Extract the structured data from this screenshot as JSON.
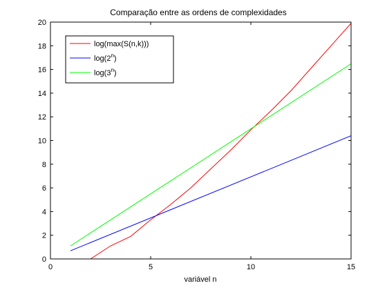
{
  "chart_data": {
    "type": "line",
    "title": "Comparação entre as ordens de complexidades",
    "xlabel": "variável n",
    "ylabel": "",
    "xlim": [
      0,
      15
    ],
    "ylim": [
      0,
      20
    ],
    "xticks": [
      0,
      5,
      10,
      15
    ],
    "yticks": [
      0,
      2,
      4,
      6,
      8,
      10,
      12,
      14,
      16,
      18,
      20
    ],
    "grid": false,
    "legend_position": "top-left",
    "series": [
      {
        "name": "log(max(S(n,k)))",
        "legend_base": "log(max(S(n,k)))",
        "legend_sup": "",
        "legend_tail": "",
        "color": "#ff0000",
        "x": [
          1,
          2,
          3,
          4,
          5,
          6,
          7,
          8,
          9,
          10,
          11,
          12,
          13,
          14,
          15
        ],
        "y": [
          -0.7,
          0.0,
          1.1,
          1.9,
          3.3,
          4.6,
          6.0,
          7.6,
          9.2,
          10.9,
          12.5,
          14.2,
          16.1,
          18.0,
          19.9
        ]
      },
      {
        "name": "log(2n)",
        "legend_base": "log(2",
        "legend_sup": "n",
        "legend_tail": ")",
        "color": "#0000ff",
        "x": [
          1,
          15
        ],
        "y": [
          0.69,
          10.4
        ]
      },
      {
        "name": "log(3n)",
        "legend_base": "log(3",
        "legend_sup": "n",
        "legend_tail": ")",
        "color": "#00ff00",
        "x": [
          1,
          15
        ],
        "y": [
          1.1,
          16.48
        ]
      }
    ]
  }
}
